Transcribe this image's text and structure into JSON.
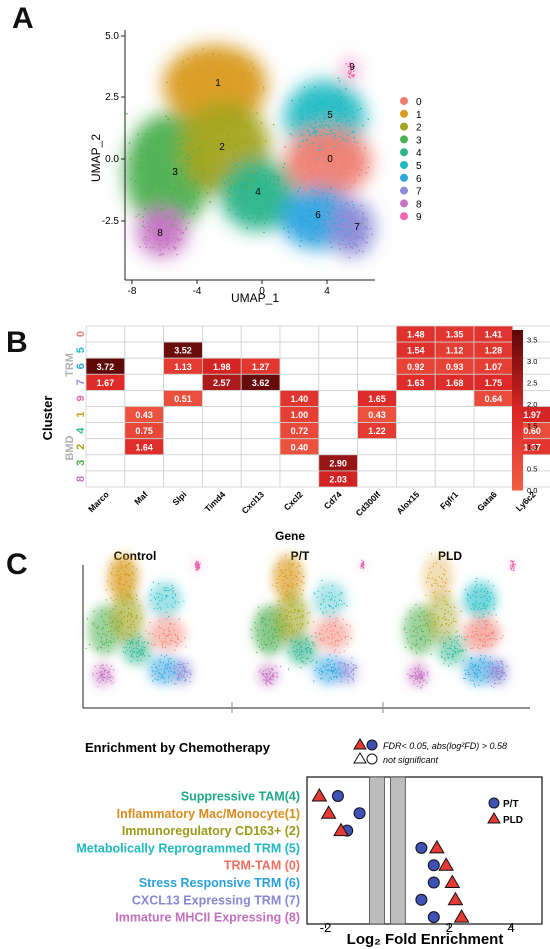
{
  "panels": {
    "a": "A",
    "b": "B",
    "c": "C"
  },
  "umap": {
    "xlabel": "UMAP_1",
    "ylabel": "UMAP_2",
    "xticks": [
      "-8",
      "-4",
      "0",
      "4"
    ],
    "yticks": [
      "5.0",
      "2.5",
      "0.0",
      "-2.5"
    ],
    "clusters": [
      {
        "id": "0",
        "color": "#F07F72"
      },
      {
        "id": "1",
        "color": "#D99A1E"
      },
      {
        "id": "2",
        "color": "#A3A51F"
      },
      {
        "id": "3",
        "color": "#4CAF50"
      },
      {
        "id": "4",
        "color": "#2BB58A"
      },
      {
        "id": "5",
        "color": "#21BCC3"
      },
      {
        "id": "6",
        "color": "#2FA4E0"
      },
      {
        "id": "7",
        "color": "#8E8DD8"
      },
      {
        "id": "8",
        "color": "#C776C4"
      },
      {
        "id": "9",
        "color": "#F067B0"
      }
    ]
  },
  "heatmap": {
    "xlabel": "Gene",
    "ylabel": "Cluster",
    "group_trm": "TRM",
    "group_bmd": "BMD",
    "genes": [
      "Marco",
      "Maf",
      "Slpi",
      "Timd4",
      "Cxcl13",
      "Cxcl2",
      "Cd74",
      "Cd300lf",
      "Alox15",
      "Fgfr1",
      "Gata6",
      "Ly6c2"
    ],
    "rows": [
      {
        "cluster": "0",
        "color": "#F07F72",
        "values": [
          null,
          null,
          null,
          null,
          null,
          null,
          null,
          null,
          1.48,
          1.35,
          1.41,
          null
        ]
      },
      {
        "cluster": "5",
        "color": "#21BCC3",
        "values": [
          null,
          null,
          3.52,
          null,
          null,
          null,
          null,
          null,
          1.54,
          1.12,
          1.28,
          null
        ]
      },
      {
        "cluster": "6",
        "color": "#2FA4E0",
        "values": [
          3.72,
          null,
          1.13,
          1.98,
          1.27,
          null,
          null,
          null,
          0.92,
          0.93,
          1.07,
          null
        ]
      },
      {
        "cluster": "7",
        "color": "#8E8DD8",
        "values": [
          1.67,
          null,
          null,
          2.57,
          3.62,
          null,
          null,
          null,
          1.63,
          1.68,
          1.75,
          null
        ]
      },
      {
        "cluster": "9",
        "color": "#F067B0",
        "values": [
          null,
          null,
          0.51,
          null,
          null,
          1.4,
          null,
          1.65,
          null,
          null,
          0.64,
          null
        ]
      },
      {
        "cluster": "1",
        "color": "#D99A1E",
        "values": [
          null,
          0.43,
          null,
          null,
          null,
          1.0,
          null,
          0.43,
          null,
          null,
          null,
          1.97
        ]
      },
      {
        "cluster": "4",
        "color": "#2BB58A",
        "values": [
          null,
          0.75,
          null,
          null,
          null,
          0.72,
          null,
          1.22,
          null,
          null,
          null,
          0.6
        ]
      },
      {
        "cluster": "2",
        "color": "#A3A51F",
        "values": [
          null,
          1.64,
          null,
          null,
          null,
          0.4,
          null,
          null,
          null,
          null,
          null,
          1.37
        ]
      },
      {
        "cluster": "3",
        "color": "#4CAF50",
        "values": [
          null,
          null,
          null,
          null,
          null,
          null,
          2.9,
          null,
          null,
          null,
          null,
          null
        ]
      },
      {
        "cluster": "8",
        "color": "#C776C4",
        "values": [
          null,
          null,
          null,
          null,
          null,
          null,
          2.03,
          null,
          null,
          null,
          null,
          null
        ]
      }
    ],
    "colorbar_ticks": [
      "3.5",
      "3.0",
      "2.5",
      "2.0",
      "1.5",
      "1.0",
      "0.5",
      "0.0"
    ],
    "colorbar_range": [
      0,
      3.72
    ]
  },
  "conditions": {
    "control": "Control",
    "pt": "P/T",
    "pld": "PLD"
  },
  "enrichment": {
    "title": "Enrichment by Chemotherapy",
    "legend_sig": "FDR< 0.05, abs(log²FD) > 0.58",
    "legend_ns": "not significant",
    "series_pt": "P/T",
    "series_pld": "PLD",
    "xlabel": "Log₂ Fold Enrichment",
    "xticks": [
      "-2",
      "2",
      "4"
    ]
  },
  "chart_data": {
    "type": "scatter",
    "title": "Enrichment by Chemotherapy",
    "xlabel": "Log2 Fold Enrichment",
    "xlim": [
      -2.6,
      5.0
    ],
    "nonsig_band": [
      -0.58,
      0.58
    ],
    "categories": [
      {
        "label": "Suppressive TAM(4)",
        "color": "#1FA88A"
      },
      {
        "label": "Inflammatory Mac/Monocyte(1)",
        "color": "#D98C1E"
      },
      {
        "label": "Immunoregulatory CD163+ (2)",
        "color": "#9A9A1C"
      },
      {
        "label": "Metabolically Reprogrammed TRM (5)",
        "color": "#21B8C0"
      },
      {
        "label": "TRM-TAM (0)",
        "color": "#EE6F5E"
      },
      {
        "label": "Stress Responsive TRM (6)",
        "color": "#2B9FDB"
      },
      {
        "label": "CXCL13 Expressing TRM (7)",
        "color": "#8987D4"
      },
      {
        "label": "Immature MHCII Expressing (8)",
        "color": "#C170C0"
      }
    ],
    "series": [
      {
        "name": "P/T",
        "values": [
          -1.6,
          -0.9,
          -1.3,
          1.1,
          1.5,
          1.5,
          1.1,
          1.5
        ]
      },
      {
        "name": "PLD",
        "values": [
          -2.2,
          -1.9,
          -1.5,
          1.6,
          1.9,
          2.1,
          2.2,
          2.4
        ]
      }
    ]
  }
}
